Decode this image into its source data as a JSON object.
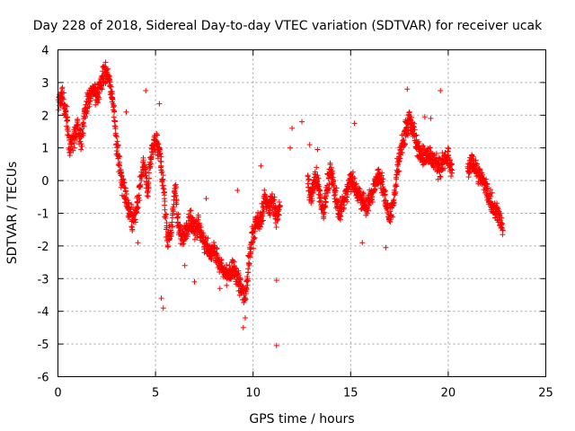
{
  "chart_data": {
    "type": "scatter",
    "title": "Day 228 of 2018, Sidereal Day-to-day VTEC variation (SDTVAR) for receiver ucak",
    "xlabel": "GPS time / hours",
    "ylabel": "SDTVAR / TECUs",
    "xlim": [
      0,
      25
    ],
    "ylim": [
      -6,
      4
    ],
    "xticks": [
      0,
      5,
      10,
      15,
      20,
      25
    ],
    "yticks": [
      -6,
      -5,
      -4,
      -3,
      -2,
      -1,
      0,
      1,
      2,
      3,
      4
    ],
    "grid": true,
    "marker": "+",
    "series": [
      {
        "name": "SDTVAR",
        "color": "#ff0000",
        "trend": [
          [
            0.0,
            2.3
          ],
          [
            0.2,
            2.7
          ],
          [
            0.4,
            2.2
          ],
          [
            0.6,
            1.0
          ],
          [
            0.8,
            1.3
          ],
          [
            1.0,
            1.6
          ],
          [
            1.2,
            1.2
          ],
          [
            1.4,
            2.2
          ],
          [
            1.6,
            2.5
          ],
          [
            1.8,
            2.8
          ],
          [
            2.0,
            2.5
          ],
          [
            2.2,
            3.0
          ],
          [
            2.4,
            3.3
          ],
          [
            2.6,
            3.1
          ],
          [
            2.8,
            2.5
          ],
          [
            3.0,
            1.2
          ],
          [
            3.2,
            0.2
          ],
          [
            3.4,
            -0.3
          ],
          [
            3.6,
            -0.8
          ],
          [
            3.8,
            -1.2
          ],
          [
            4.0,
            -1.0
          ],
          [
            4.2,
            -0.2
          ],
          [
            4.4,
            0.6
          ],
          [
            4.6,
            -0.4
          ],
          [
            4.8,
            1.0
          ],
          [
            5.0,
            1.2
          ],
          [
            5.2,
            0.9
          ],
          [
            5.4,
            -0.2
          ],
          [
            5.6,
            -1.8
          ],
          [
            5.8,
            -1.6
          ],
          [
            6.0,
            -0.2
          ],
          [
            6.2,
            -1.5
          ],
          [
            6.4,
            -1.8
          ],
          [
            6.6,
            -1.5
          ],
          [
            6.8,
            -1.2
          ],
          [
            7.0,
            -1.5
          ],
          [
            7.2,
            -1.4
          ],
          [
            7.4,
            -1.8
          ],
          [
            7.6,
            -1.9
          ],
          [
            7.8,
            -2.3
          ],
          [
            8.0,
            -2.0
          ],
          [
            8.2,
            -2.5
          ],
          [
            8.4,
            -2.6
          ],
          [
            8.6,
            -2.9
          ],
          [
            8.8,
            -2.8
          ],
          [
            9.0,
            -2.7
          ],
          [
            9.2,
            -3.0
          ],
          [
            9.4,
            -3.3
          ],
          [
            9.6,
            -3.6
          ],
          [
            9.8,
            -2.5
          ],
          [
            10.0,
            -1.6
          ],
          [
            10.2,
            -1.2
          ],
          [
            10.4,
            -1.3
          ],
          [
            10.6,
            -0.6
          ],
          [
            10.8,
            -0.8
          ],
          [
            11.0,
            -0.6
          ],
          [
            11.2,
            -1.2
          ],
          [
            11.4,
            -0.8
          ],
          [
            12.8,
            0.0
          ],
          [
            13.0,
            -0.5
          ],
          [
            13.2,
            0.2
          ],
          [
            13.4,
            -0.4
          ],
          [
            13.6,
            -1.0
          ],
          [
            13.8,
            -0.2
          ],
          [
            14.0,
            0.3
          ],
          [
            14.2,
            -0.4
          ],
          [
            14.4,
            -0.9
          ],
          [
            14.6,
            -0.7
          ],
          [
            14.8,
            -0.3
          ],
          [
            15.0,
            0.1
          ],
          [
            15.2,
            -0.2
          ],
          [
            15.4,
            -0.4
          ],
          [
            15.6,
            -0.6
          ],
          [
            15.8,
            -0.8
          ],
          [
            16.0,
            -0.5
          ],
          [
            16.2,
            -0.2
          ],
          [
            16.4,
            0.1
          ],
          [
            16.6,
            0.0
          ],
          [
            16.8,
            -0.6
          ],
          [
            17.0,
            -1.2
          ],
          [
            17.2,
            -0.6
          ],
          [
            17.4,
            0.4
          ],
          [
            17.6,
            1.0
          ],
          [
            17.8,
            1.5
          ],
          [
            18.0,
            1.8
          ],
          [
            18.2,
            1.6
          ],
          [
            18.4,
            1.0
          ],
          [
            18.6,
            0.9
          ],
          [
            18.8,
            0.7
          ],
          [
            19.0,
            0.9
          ],
          [
            19.2,
            0.6
          ],
          [
            19.4,
            0.5
          ],
          [
            19.6,
            0.4
          ],
          [
            19.8,
            0.6
          ],
          [
            20.0,
            0.7
          ],
          [
            20.2,
            0.3
          ],
          [
            21.0,
            0.3
          ],
          [
            21.2,
            0.6
          ],
          [
            21.4,
            0.4
          ],
          [
            21.6,
            0.2
          ],
          [
            21.8,
            0.0
          ],
          [
            22.0,
            -0.4
          ],
          [
            22.2,
            -0.7
          ],
          [
            22.4,
            -0.9
          ],
          [
            22.6,
            -1.1
          ],
          [
            22.8,
            -1.5
          ]
        ],
        "outliers": [
          [
            5.4,
            -3.9
          ],
          [
            5.3,
            -3.6
          ],
          [
            9.5,
            -4.5
          ],
          [
            9.6,
            -4.2
          ],
          [
            11.2,
            -5.05
          ],
          [
            11.2,
            -3.05
          ],
          [
            12.5,
            1.8
          ],
          [
            12.0,
            1.6
          ],
          [
            11.9,
            1.0
          ],
          [
            12.9,
            1.1
          ],
          [
            4.5,
            2.75
          ],
          [
            5.2,
            2.35
          ],
          [
            19.6,
            2.75
          ],
          [
            19.1,
            1.9
          ],
          [
            18.8,
            1.95
          ],
          [
            9.2,
            -0.3
          ],
          [
            8.3,
            -3.3
          ],
          [
            7.6,
            -0.55
          ],
          [
            16.8,
            -2.05
          ],
          [
            15.2,
            1.75
          ],
          [
            3.5,
            2.1
          ],
          [
            4.1,
            -1.9
          ],
          [
            6.5,
            -2.6
          ],
          [
            7.0,
            -3.1
          ],
          [
            10.4,
            0.45
          ],
          [
            13.3,
            0.95
          ],
          [
            15.6,
            -1.9
          ],
          [
            17.9,
            2.8
          ]
        ]
      }
    ]
  }
}
